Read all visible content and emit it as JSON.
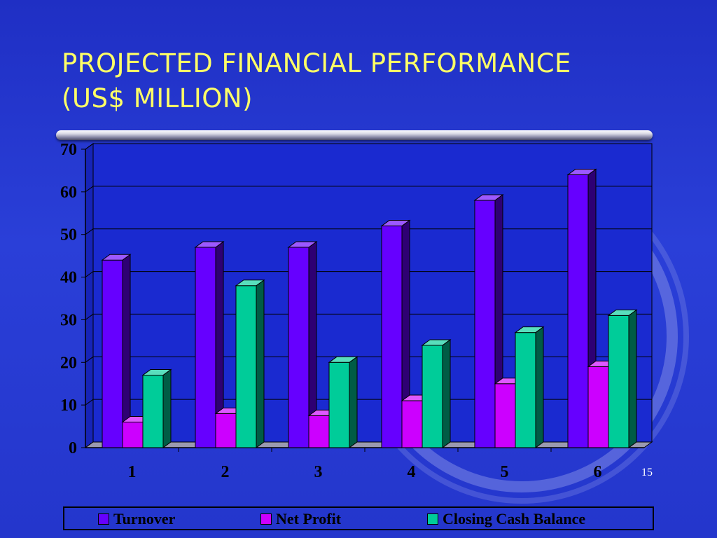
{
  "slide": {
    "title_line1": "PROJECTED FINANCIAL PERFORMANCE",
    "title_line2": "(US$ MILLION)",
    "page_number": "15"
  },
  "colors": {
    "title": "#ffff66",
    "background": "#2436cc",
    "turnover": "#6600ff",
    "net_profit": "#cc00ff",
    "closing_cash": "#00cc99"
  },
  "chart_data": {
    "type": "bar",
    "categories": [
      "1",
      "2",
      "3",
      "4",
      "5",
      "6"
    ],
    "series": [
      {
        "name": "Turnover",
        "values": [
          44,
          47,
          47,
          52,
          58,
          64
        ]
      },
      {
        "name": "Net Profit",
        "values": [
          6,
          8,
          7.5,
          11,
          15,
          19
        ]
      },
      {
        "name": "Closing Cash Balance",
        "values": [
          17,
          38,
          20,
          24,
          27,
          31
        ]
      }
    ],
    "y_ticks": [
      "0",
      "10",
      "20",
      "30",
      "40",
      "50",
      "60",
      "70"
    ],
    "ylim": [
      0,
      70
    ],
    "grid": true,
    "legend_position": "bottom"
  }
}
